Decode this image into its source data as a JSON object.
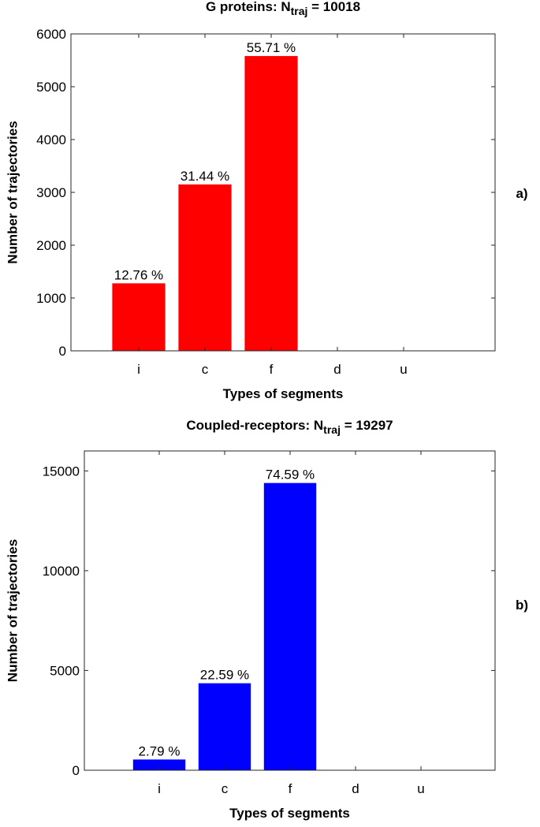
{
  "chart_data": [
    {
      "type": "bar",
      "title": [
        "G proteins: N",
        "traj",
        " = 10018"
      ],
      "categories": [
        "i",
        "c",
        "f",
        "d",
        "u"
      ],
      "values": [
        1278,
        3150,
        5581,
        0,
        0
      ],
      "annotations": [
        "12.76 %",
        "31.44 %",
        "55.71 %"
      ],
      "color": "#ff0000",
      "ylim": [
        0,
        6000
      ],
      "yticks": [
        0,
        1000,
        2000,
        3000,
        4000,
        5000,
        6000
      ],
      "xlabel": "Types of segments",
      "ylabel": "Number of trajectories",
      "panel_label": "a)"
    },
    {
      "type": "bar",
      "title": [
        "Coupled-receptors: N",
        "traj",
        " = 19297"
      ],
      "categories": [
        "i",
        "c",
        "f",
        "d",
        "u"
      ],
      "values": [
        538,
        4359,
        14394,
        0,
        0
      ],
      "annotations": [
        "2.79 %",
        "22.59 %",
        "74.59 %"
      ],
      "color": "#0000ff",
      "ylim": [
        0,
        16000
      ],
      "yticks": [
        0,
        5000,
        10000,
        15000
      ],
      "xlabel": "Types of segments",
      "ylabel": "Number of trajectories",
      "panel_label": "b)"
    }
  ]
}
